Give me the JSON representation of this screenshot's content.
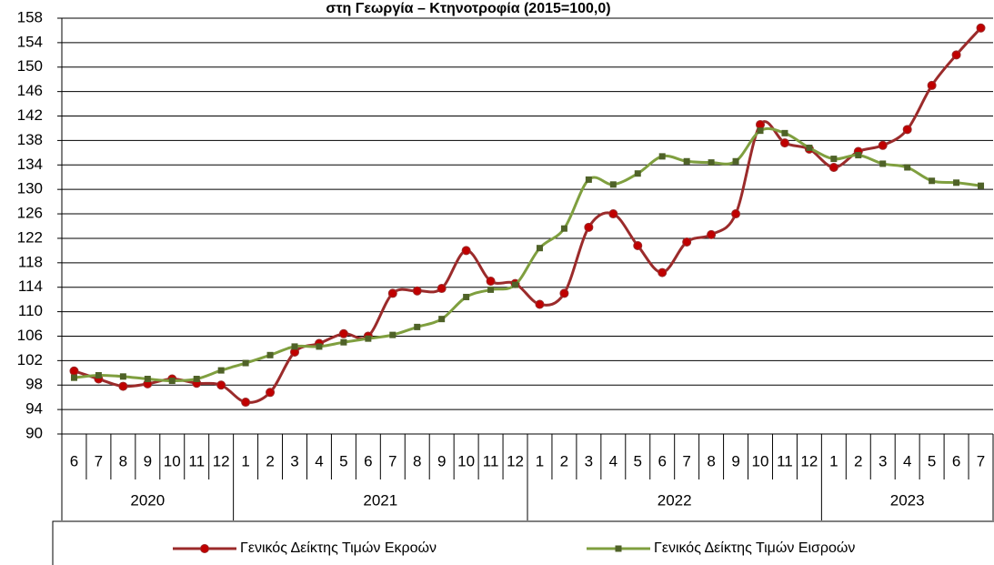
{
  "chart_data": {
    "type": "line",
    "title": "στη Γεωργία – Κτηνοτροφία (2015=100,0)",
    "category_groups": [
      {
        "label": "2020",
        "categories": [
          "6",
          "7",
          "8",
          "9",
          "10",
          "11",
          "12"
        ]
      },
      {
        "label": "2021",
        "categories": [
          "1",
          "2",
          "3",
          "4",
          "5",
          "6",
          "7",
          "8",
          "9",
          "10",
          "11",
          "12"
        ]
      },
      {
        "label": "2022",
        "categories": [
          "1",
          "2",
          "3",
          "4",
          "5",
          "6",
          "7",
          "8",
          "9",
          "10",
          "11",
          "12"
        ]
      },
      {
        "label": "2023",
        "categories": [
          "1",
          "2",
          "3",
          "4",
          "5",
          "6",
          "7"
        ]
      }
    ],
    "series": [
      {
        "name": "Γενικός Δείκτης Τιμών Εκροών",
        "color": "#9b2b2b",
        "marker": "circle",
        "marker_color": "#c00000",
        "values": [
          100.3,
          99.0,
          97.8,
          98.2,
          99.0,
          98.3,
          98.0,
          95.2,
          96.8,
          103.4,
          104.8,
          106.4,
          106.0,
          113.0,
          113.4,
          113.8,
          120.0,
          115.0,
          114.6,
          111.2,
          113.0,
          123.8,
          126.0,
          120.8,
          116.4,
          121.4,
          122.6,
          126.0,
          140.6,
          137.6,
          136.6,
          133.6,
          136.2,
          137.2,
          139.8,
          147.0,
          152.0,
          156.4
        ]
      },
      {
        "name": "Γενικός Δείκτης Τιμών Εισροών",
        "color": "#7f9f3f",
        "marker": "square",
        "marker_color": "#4f6228",
        "values": [
          99.2,
          99.6,
          99.4,
          99.0,
          98.7,
          99.0,
          100.4,
          101.6,
          102.9,
          104.3,
          104.3,
          105.0,
          105.6,
          106.2,
          107.5,
          108.8,
          112.4,
          113.6,
          114.4,
          120.4,
          123.6,
          131.6,
          130.8,
          132.6,
          135.4,
          134.6,
          134.4,
          134.6,
          139.6,
          139.2,
          136.8,
          135.0,
          135.6,
          134.2,
          133.6,
          131.4,
          131.1,
          130.6
        ]
      }
    ],
    "ylim": [
      90,
      158
    ],
    "yticks": [
      90,
      94,
      98,
      102,
      106,
      110,
      114,
      118,
      122,
      126,
      130,
      134,
      138,
      142,
      146,
      150,
      154,
      158
    ],
    "grid": true,
    "smooth": true,
    "legend_position": "bottom"
  }
}
